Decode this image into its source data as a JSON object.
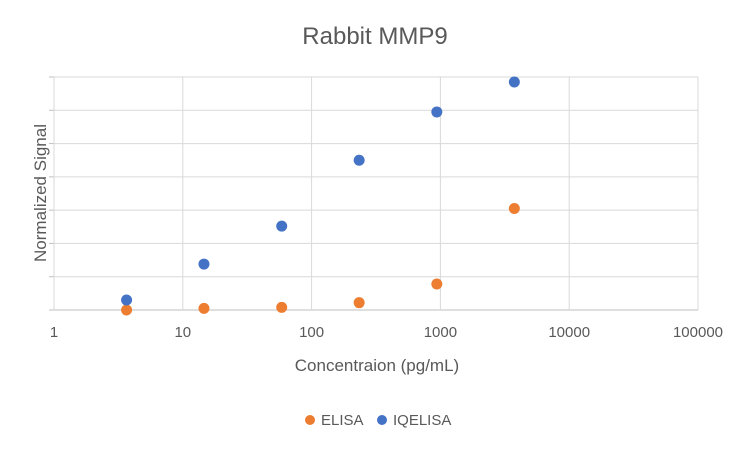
{
  "chart_data": {
    "type": "scatter",
    "title": "Rabbit MMP9",
    "xlabel": "Concentraion (pg/mL)",
    "ylabel": "Normalized Signal",
    "xscale": "log",
    "xlim": [
      1,
      100000
    ],
    "ylim": [
      0,
      7
    ],
    "x_tick_labels": [
      "1",
      "10",
      "100",
      "1000",
      "10000",
      "100000"
    ],
    "x_tick_values": [
      1,
      10,
      100,
      1000,
      10000,
      100000
    ],
    "y_gridlines": [
      0,
      1,
      2,
      3,
      4,
      5,
      6,
      7
    ],
    "grid": true,
    "legend_position": "bottom",
    "series": [
      {
        "name": "ELISA",
        "color": "#ED7D31",
        "x": [
          3.66,
          14.6,
          58.6,
          234,
          938,
          3750
        ],
        "y": [
          0.0,
          0.05,
          0.08,
          0.22,
          0.78,
          3.05
        ]
      },
      {
        "name": "IQELISA",
        "color": "#4472C4",
        "x": [
          3.66,
          14.6,
          58.6,
          234,
          938,
          3750
        ],
        "y": [
          0.3,
          1.38,
          2.52,
          4.5,
          5.95,
          6.85
        ]
      }
    ]
  }
}
